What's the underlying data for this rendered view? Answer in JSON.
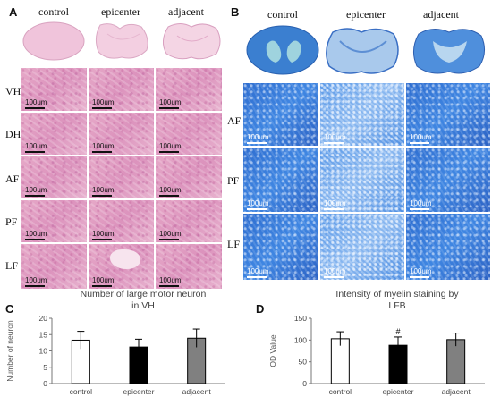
{
  "panel_a": {
    "letter": "A",
    "columns": [
      "control",
      "epicenter",
      "adjacent"
    ],
    "rows": [
      "VH",
      "DH",
      "AF",
      "PF",
      "LF"
    ],
    "scale_label": "100um",
    "colors": {
      "stain": "#dc93bd",
      "background": "#f2c7dd"
    }
  },
  "panel_b": {
    "letter": "B",
    "columns": [
      "control",
      "epicenter",
      "adjacent"
    ],
    "rows": [
      "AF",
      "PF",
      "LF"
    ],
    "scale_label": "100um",
    "colors": {
      "stain": "#3f86e2"
    }
  },
  "panel_c": {
    "letter": "C"
  },
  "panel_d": {
    "letter": "D"
  },
  "chart_data": [
    {
      "type": "bar",
      "title": "Number of large motor neuron in VH",
      "title_lines": [
        "Number of large motor neuron",
        "in VH"
      ],
      "ylabel": "Number of neuron",
      "xlabel": "",
      "categories": [
        "control",
        "epicenter",
        "adjacent"
      ],
      "values": [
        13.3,
        11.2,
        13.9
      ],
      "errors": [
        2.7,
        2.4,
        2.8
      ],
      "bar_colors": [
        "#ffffff",
        "#000000",
        "#808080"
      ],
      "ylim": [
        0,
        20
      ],
      "yticks": [
        0,
        5,
        10,
        15,
        20
      ],
      "grid": false,
      "legend": "none",
      "annotations": []
    },
    {
      "type": "bar",
      "title": "Intensity of myelin staining by LFB",
      "title_lines": [
        "Intensity of myelin staining by",
        "LFB"
      ],
      "ylabel": "OD Value",
      "xlabel": "",
      "categories": [
        "control",
        "epicenter",
        "adjacent"
      ],
      "values": [
        103,
        88,
        101
      ],
      "errors": [
        16,
        19,
        15
      ],
      "bar_colors": [
        "#ffffff",
        "#000000",
        "#808080"
      ],
      "ylim": [
        0,
        150
      ],
      "yticks": [
        0,
        50,
        100,
        150
      ],
      "grid": false,
      "legend": "none",
      "annotations": [
        {
          "category": "epicenter",
          "text": "#"
        }
      ]
    }
  ]
}
